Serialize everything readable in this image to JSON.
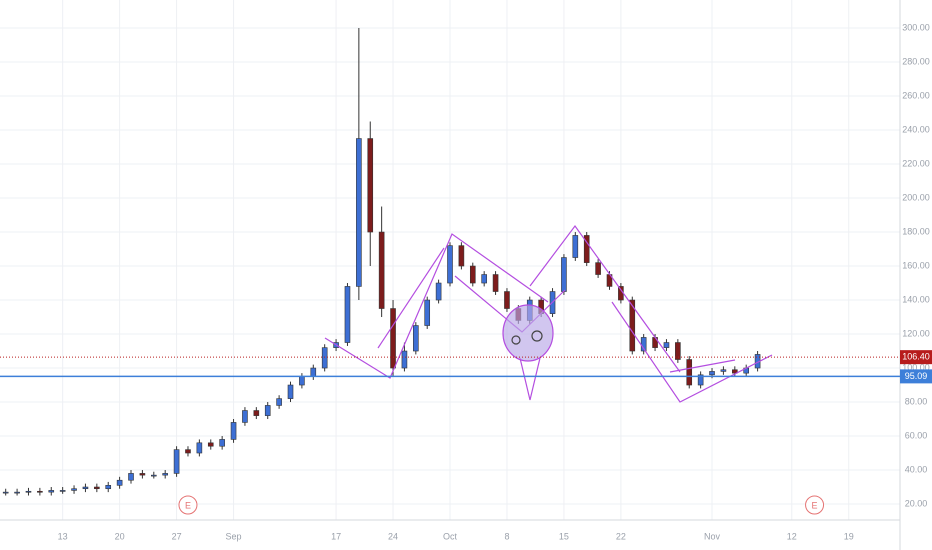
{
  "chart_data": {
    "type": "candlestick",
    "x": [
      -5,
      -4,
      -3,
      -2,
      -1,
      0,
      1,
      2,
      3,
      4,
      5,
      6,
      7,
      8,
      9,
      10,
      11,
      12,
      13,
      14,
      15,
      16,
      17,
      18,
      19,
      20,
      21,
      22,
      23,
      24,
      25,
      26,
      27,
      28,
      29,
      30,
      31,
      32,
      33,
      34,
      35,
      36,
      37,
      38,
      39,
      40,
      41,
      42,
      43,
      44,
      45,
      46,
      47,
      48,
      49,
      50,
      51,
      52,
      53,
      54,
      55,
      56,
      57,
      58,
      59,
      60,
      61
    ],
    "open": [
      27,
      27,
      27,
      27.5,
      27,
      28,
      28,
      29,
      30,
      29,
      31,
      34,
      38,
      37,
      37,
      38,
      52,
      50,
      56,
      54,
      58,
      68,
      75,
      72,
      78,
      82,
      90,
      95,
      100,
      112,
      115,
      148,
      235,
      180,
      135,
      100,
      110,
      125,
      140,
      150,
      172,
      160,
      150,
      155,
      145,
      135,
      128,
      140,
      132,
      145,
      165,
      178,
      162,
      155,
      148,
      140,
      110,
      118,
      112,
      115,
      105,
      90,
      96,
      98,
      99,
      97,
      100
    ],
    "high": [
      29,
      29,
      29.5,
      29.5,
      30,
      30,
      31,
      32,
      32,
      33,
      36,
      40,
      40,
      39,
      40,
      54,
      54,
      58,
      58,
      60,
      70,
      77,
      77,
      80,
      84,
      92,
      97,
      102,
      114,
      117,
      150,
      300,
      245,
      195,
      140,
      115,
      127,
      142,
      152,
      174,
      174,
      162,
      157,
      157,
      147,
      137,
      142,
      142,
      147,
      167,
      180,
      180,
      164,
      157,
      150,
      142,
      120,
      120,
      117,
      117,
      107,
      98,
      100,
      101,
      101,
      102,
      110
    ],
    "low": [
      25,
      25,
      25,
      25,
      25,
      26,
      26,
      27,
      27,
      27,
      29,
      32,
      35,
      35,
      35,
      36,
      48,
      48,
      52,
      52,
      56,
      66,
      70,
      70,
      76,
      80,
      88,
      93,
      98,
      110,
      113,
      140,
      160,
      130,
      95,
      98,
      108,
      123,
      138,
      148,
      158,
      148,
      148,
      143,
      133,
      126,
      126,
      130,
      130,
      143,
      163,
      160,
      153,
      146,
      138,
      108,
      108,
      110,
      110,
      103,
      88,
      88,
      94,
      96,
      95,
      95,
      98
    ],
    "close": [
      27,
      27,
      27.5,
      27,
      28,
      28,
      29,
      30,
      29,
      31,
      34,
      38,
      37,
      37,
      38,
      52,
      50,
      56,
      54,
      58,
      68,
      75,
      72,
      78,
      82,
      90,
      95,
      100,
      112,
      115,
      148,
      235,
      180,
      135,
      100,
      110,
      125,
      140,
      150,
      172,
      160,
      150,
      155,
      145,
      135,
      128,
      140,
      132,
      145,
      165,
      178,
      162,
      155,
      148,
      140,
      110,
      118,
      112,
      115,
      105,
      90,
      96,
      98,
      99,
      97,
      100,
      108
    ],
    "up_color": "#3d6fd4",
    "down_color": "#7d1c1c",
    "xlim": [
      -5.5,
      73.5
    ],
    "xticks": [
      {
        "value": 0,
        "label": "13"
      },
      {
        "value": 5,
        "label": "20"
      },
      {
        "value": 10,
        "label": "27"
      },
      {
        "value": 15,
        "label": "Sep"
      },
      {
        "value": 24,
        "label": "17"
      },
      {
        "value": 29,
        "label": "24"
      },
      {
        "value": 34,
        "label": "Oct"
      },
      {
        "value": 39,
        "label": "8"
      },
      {
        "value": 44,
        "label": "15"
      },
      {
        "value": 49,
        "label": "22"
      },
      {
        "value": 57,
        "label": "Nov"
      },
      {
        "value": 64,
        "label": "12"
      },
      {
        "value": 69,
        "label": "19"
      }
    ],
    "ylim": [
      10.6,
      316.5
    ],
    "yticks": [
      {
        "value": 20,
        "label": "20.00"
      },
      {
        "value": 40,
        "label": "40.00"
      },
      {
        "value": 60,
        "label": "60.00"
      },
      {
        "value": 80,
        "label": "80.00"
      },
      {
        "value": 100,
        "label": "100.00"
      },
      {
        "value": 120,
        "label": "120.00"
      },
      {
        "value": 140,
        "label": "140.00"
      },
      {
        "value": 160,
        "label": "160.00"
      },
      {
        "value": 180,
        "label": "180.00"
      },
      {
        "value": 200,
        "label": "200.00"
      },
      {
        "value": 220,
        "label": "220.00"
      },
      {
        "value": 240,
        "label": "240.00"
      },
      {
        "value": 260,
        "label": "260.00"
      },
      {
        "value": 280,
        "label": "280.00"
      },
      {
        "value": 300,
        "label": "300.00"
      }
    ],
    "grid": true,
    "price_lines": [
      {
        "value": 106.4,
        "label": "106.40",
        "color": "#b71c1c",
        "style": "dotted"
      },
      {
        "value": 95.09,
        "label": "95.09",
        "color": "#3d7fd9",
        "style": "solid"
      }
    ],
    "events": [
      {
        "x": 11,
        "label": "E"
      },
      {
        "x": 66,
        "label": "E"
      }
    ]
  }
}
